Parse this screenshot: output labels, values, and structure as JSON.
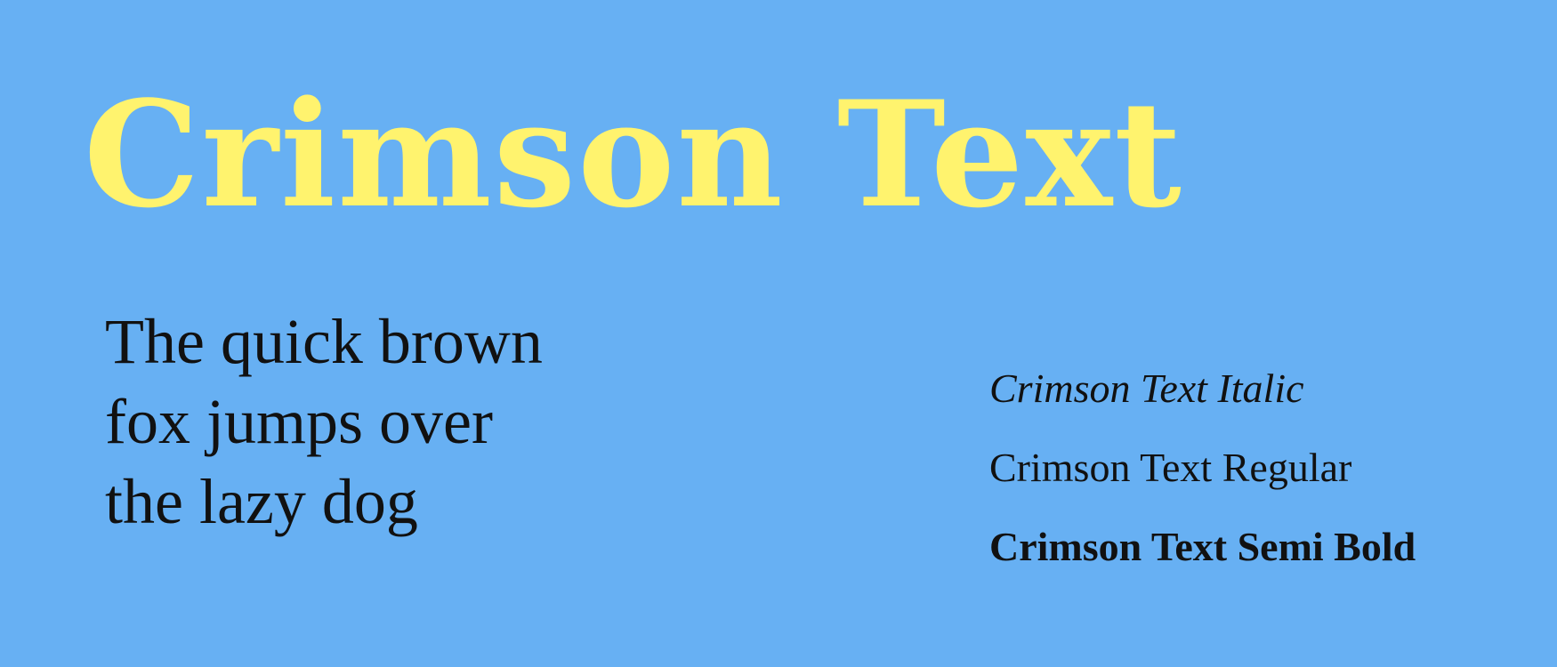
{
  "hero": {
    "title": "Crimson Text",
    "color": "#fff36e"
  },
  "background_color": "#67b0f3",
  "pangram": {
    "lines": [
      "The quick brown",
      "fox jumps over",
      "the lazy dog"
    ]
  },
  "styles": [
    {
      "label": "Crimson Text Italic",
      "style": "italic"
    },
    {
      "label": "Crimson Text Regular",
      "style": "regular"
    },
    {
      "label": "Crimson Text Semi Bold",
      "style": "semibold"
    }
  ]
}
